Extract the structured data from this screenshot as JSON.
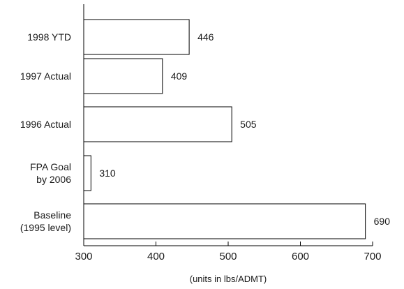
{
  "chart_data": {
    "type": "bar",
    "orientation": "horizontal",
    "categories": [
      [
        "1998 YTD"
      ],
      [
        "1997 Actual"
      ],
      [
        "1996 Actual"
      ],
      [
        "FPA Goal",
        "by 2006"
      ],
      [
        "Baseline",
        "(1995 level)"
      ]
    ],
    "values": [
      446,
      409,
      505,
      310,
      690
    ],
    "xlim": [
      300,
      700
    ],
    "xticks": [
      300,
      400,
      500,
      600,
      700
    ],
    "xlabel": "(units in lbs/ADMT)",
    "title": "",
    "grid": false,
    "bar_fill": "#ffffff",
    "bar_stroke": "#000000"
  }
}
